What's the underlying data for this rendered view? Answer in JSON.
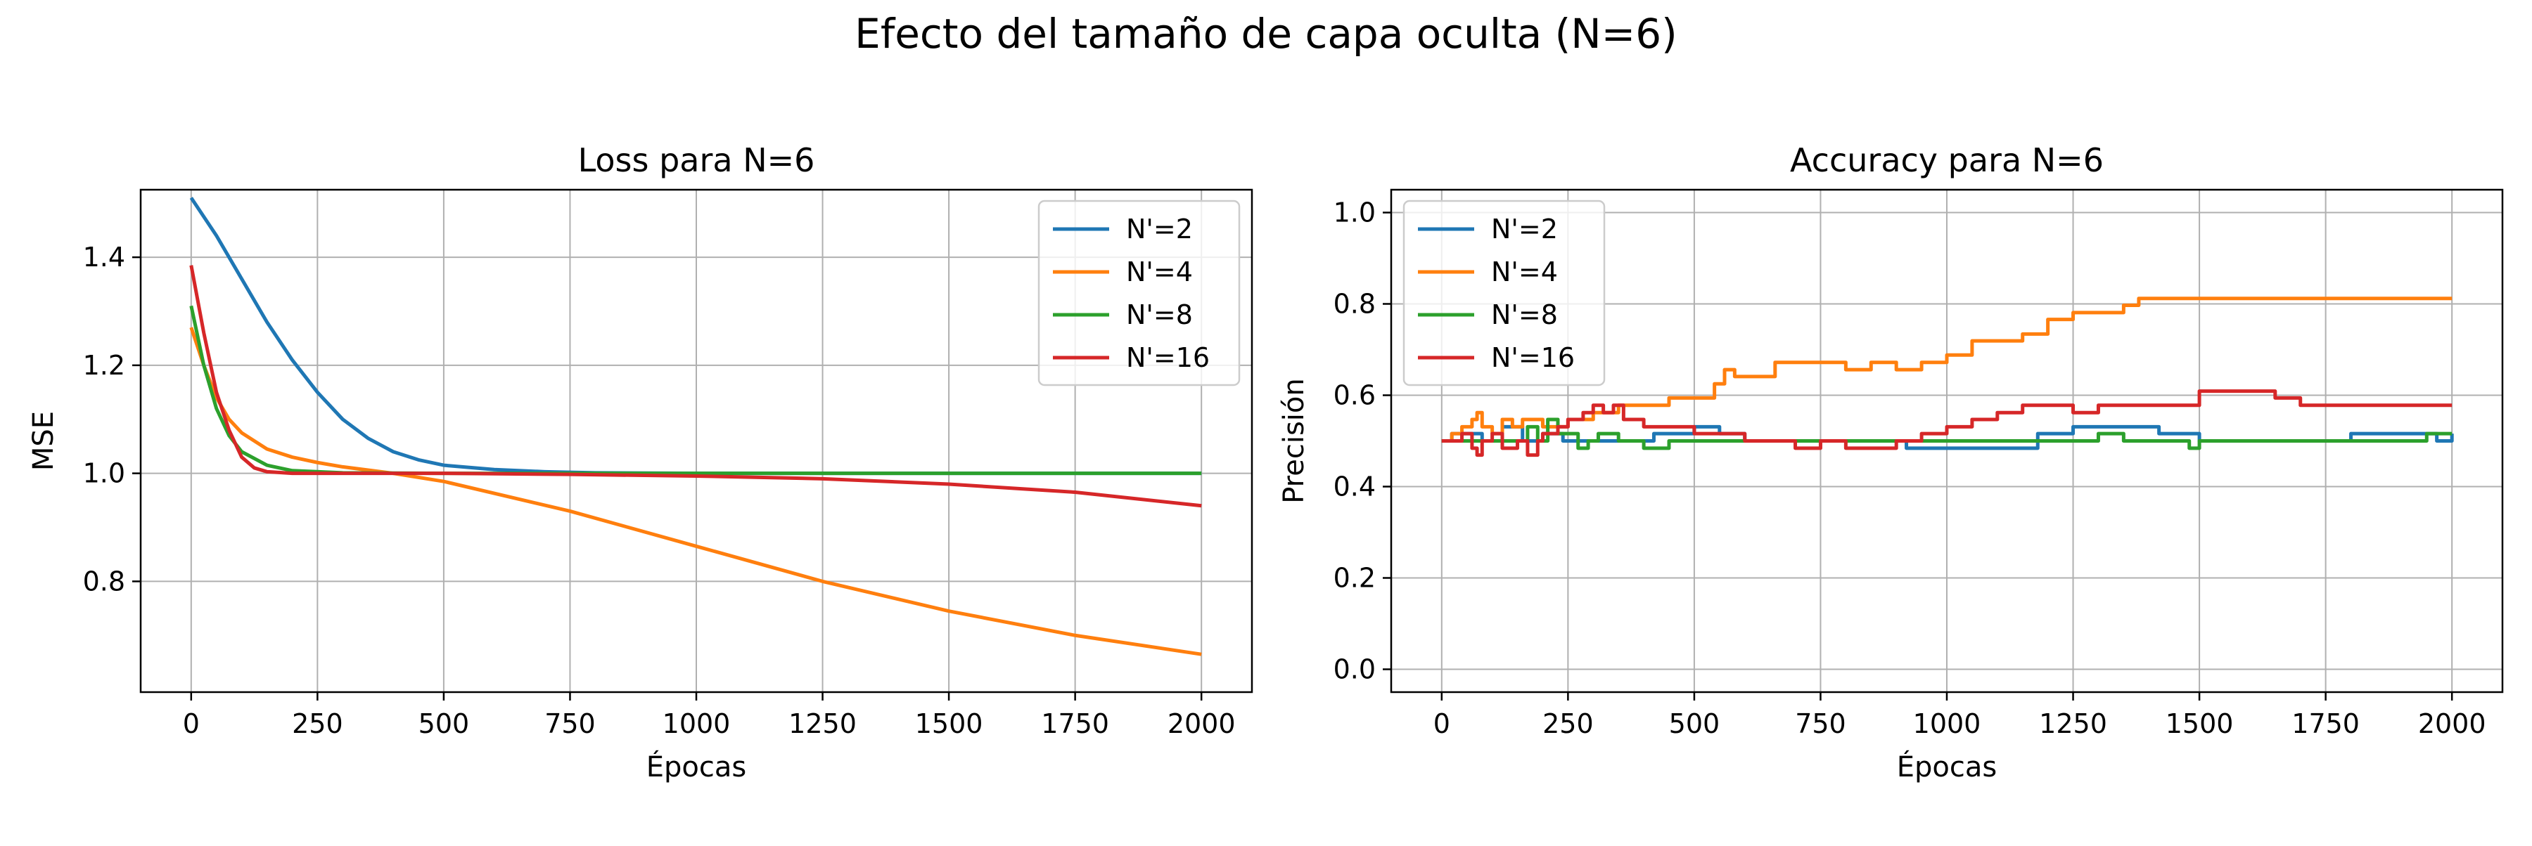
{
  "figure": {
    "title": "Efecto del tamaño de capa oculta (N=6)"
  },
  "chart_data": [
    {
      "type": "line",
      "title": "Loss para N=6",
      "xlabel": "Épocas",
      "ylabel": "MSE",
      "xlim": [
        -100,
        2100
      ],
      "ylim": [
        0.595,
        1.525
      ],
      "xticks": [
        0,
        250,
        500,
        750,
        1000,
        1250,
        1500,
        1750,
        2000
      ],
      "yticks": [
        0.8,
        1.0,
        1.2,
        1.4
      ],
      "grid": true,
      "legend": "top-right",
      "series": [
        {
          "name": "N'=2",
          "color": "#1f77b4",
          "x": [
            0,
            50,
            100,
            150,
            200,
            250,
            300,
            350,
            400,
            450,
            500,
            600,
            700,
            800,
            1000,
            2000
          ],
          "y": [
            1.51,
            1.44,
            1.36,
            1.28,
            1.21,
            1.15,
            1.1,
            1.065,
            1.04,
            1.025,
            1.015,
            1.007,
            1.003,
            1.001,
            1.0,
            1.0
          ]
        },
        {
          "name": "N'=4",
          "color": "#ff7f0e",
          "x": [
            0,
            25,
            50,
            75,
            100,
            150,
            200,
            250,
            300,
            400,
            500,
            750,
            1000,
            1250,
            1500,
            1750,
            2000
          ],
          "y": [
            1.27,
            1.2,
            1.14,
            1.1,
            1.075,
            1.045,
            1.03,
            1.02,
            1.012,
            1.0,
            0.985,
            0.93,
            0.865,
            0.8,
            0.745,
            0.7,
            0.665
          ]
        },
        {
          "name": "N'=8",
          "color": "#2ca02c",
          "x": [
            0,
            25,
            50,
            75,
            100,
            150,
            200,
            300,
            500,
            1000,
            2000
          ],
          "y": [
            1.31,
            1.2,
            1.12,
            1.07,
            1.04,
            1.015,
            1.005,
            1.001,
            1.0,
            1.0,
            1.0
          ]
        },
        {
          "name": "N'=16",
          "color": "#d62728",
          "x": [
            0,
            25,
            50,
            75,
            100,
            125,
            150,
            200,
            300,
            500,
            750,
            1000,
            1250,
            1500,
            1750,
            2000
          ],
          "y": [
            1.385,
            1.26,
            1.15,
            1.08,
            1.03,
            1.01,
            1.003,
            1.0,
            1.0,
            1.0,
            0.998,
            0.995,
            0.99,
            0.98,
            0.965,
            0.94
          ]
        }
      ]
    },
    {
      "type": "line",
      "title": "Accuracy para N=6",
      "xlabel": "Épocas",
      "ylabel": "Precisión",
      "xlim": [
        -100,
        2100
      ],
      "ylim": [
        -0.05,
        1.05
      ],
      "xticks": [
        0,
        250,
        500,
        750,
        1000,
        1250,
        1500,
        1750,
        2000
      ],
      "yticks": [
        0.0,
        0.2,
        0.4,
        0.6,
        0.8,
        1.0
      ],
      "grid": true,
      "legend": "top-left",
      "series": [
        {
          "name": "N'=2",
          "color": "#1f77b4",
          "step": true,
          "x": [
            0,
            20,
            80,
            120,
            160,
            200,
            240,
            420,
            500,
            550,
            600,
            900,
            920,
            1000,
            1150,
            1180,
            1220,
            1250,
            1350,
            1420,
            1450,
            1500,
            1550,
            1800,
            1950,
            1970,
            2000
          ],
          "y": [
            0.5,
            0.516,
            0.5,
            0.531,
            0.5,
            0.516,
            0.5,
            0.516,
            0.531,
            0.516,
            0.5,
            0.5,
            0.484,
            0.484,
            0.484,
            0.516,
            0.516,
            0.531,
            0.531,
            0.516,
            0.516,
            0.5,
            0.5,
            0.516,
            0.516,
            0.5,
            0.516
          ]
        },
        {
          "name": "N'=4",
          "color": "#ff7f0e",
          "step": true,
          "x": [
            0,
            20,
            40,
            60,
            70,
            80,
            100,
            120,
            140,
            160,
            200,
            250,
            300,
            350,
            400,
            450,
            500,
            540,
            560,
            580,
            600,
            660,
            680,
            750,
            800,
            850,
            900,
            950,
            1000,
            1050,
            1100,
            1150,
            1200,
            1250,
            1300,
            1350,
            1380,
            2000
          ],
          "y": [
            0.5,
            0.516,
            0.531,
            0.547,
            0.562,
            0.531,
            0.516,
            0.547,
            0.531,
            0.547,
            0.531,
            0.547,
            0.562,
            0.578,
            0.578,
            0.594,
            0.594,
            0.625,
            0.656,
            0.641,
            0.641,
            0.672,
            0.672,
            0.672,
            0.656,
            0.672,
            0.656,
            0.672,
            0.688,
            0.719,
            0.719,
            0.734,
            0.766,
            0.781,
            0.781,
            0.797,
            0.812,
            0.812
          ]
        },
        {
          "name": "N'=8",
          "color": "#2ca02c",
          "step": true,
          "x": [
            0,
            150,
            170,
            190,
            210,
            230,
            250,
            270,
            290,
            310,
            350,
            400,
            450,
            700,
            1250,
            1300,
            1350,
            1450,
            1480,
            1500,
            1950,
            2000
          ],
          "y": [
            0.5,
            0.5,
            0.531,
            0.5,
            0.547,
            0.516,
            0.516,
            0.484,
            0.5,
            0.516,
            0.5,
            0.484,
            0.5,
            0.5,
            0.5,
            0.516,
            0.5,
            0.5,
            0.484,
            0.5,
            0.516,
            0.516
          ]
        },
        {
          "name": "N'=16",
          "color": "#d62728",
          "step": true,
          "x": [
            0,
            40,
            60,
            70,
            80,
            100,
            120,
            150,
            170,
            190,
            200,
            230,
            250,
            280,
            300,
            320,
            340,
            360,
            400,
            500,
            550,
            600,
            650,
            700,
            750,
            800,
            850,
            900,
            950,
            1000,
            1050,
            1100,
            1150,
            1200,
            1250,
            1300,
            1350,
            1450,
            1500,
            1650,
            1700,
            2000
          ],
          "y": [
            0.5,
            0.516,
            0.484,
            0.469,
            0.5,
            0.516,
            0.484,
            0.5,
            0.469,
            0.5,
            0.516,
            0.531,
            0.547,
            0.562,
            0.578,
            0.562,
            0.578,
            0.547,
            0.531,
            0.516,
            0.516,
            0.5,
            0.5,
            0.484,
            0.5,
            0.484,
            0.484,
            0.5,
            0.516,
            0.531,
            0.547,
            0.562,
            0.578,
            0.578,
            0.562,
            0.578,
            0.578,
            0.578,
            0.609,
            0.594,
            0.578,
            0.578
          ]
        }
      ]
    }
  ]
}
